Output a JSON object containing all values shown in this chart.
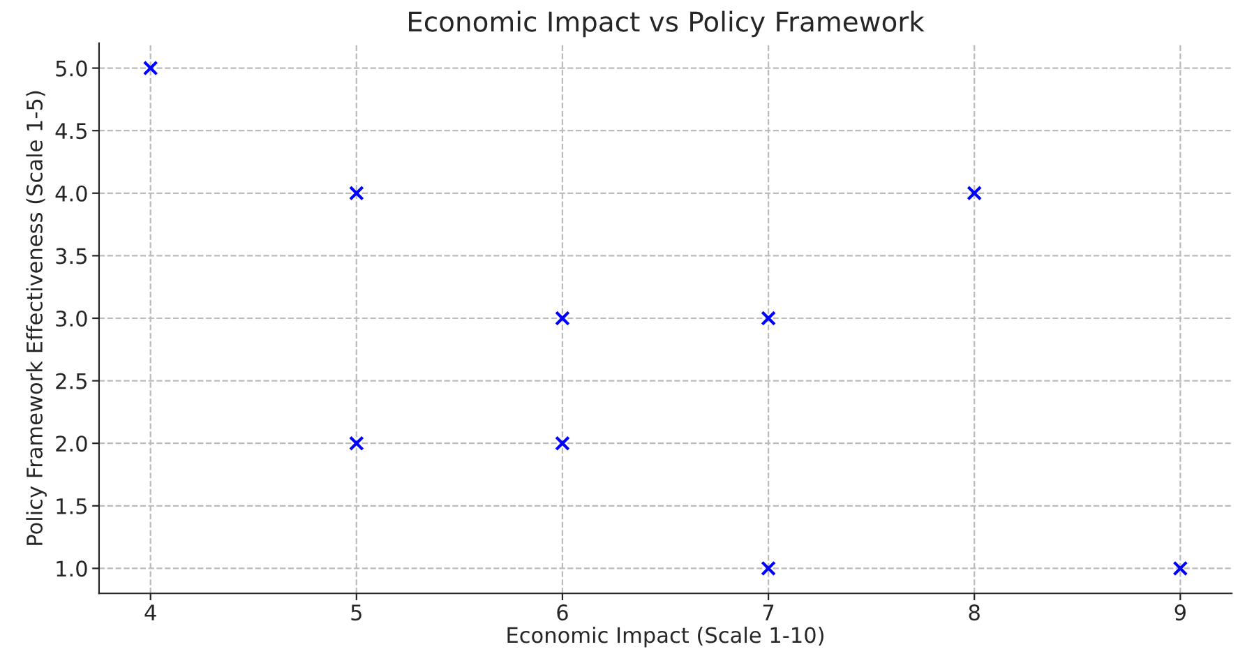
{
  "chart_data": {
    "type": "scatter",
    "title": "Economic Impact vs Policy Framework",
    "xlabel": "Economic Impact (Scale 1-10)",
    "ylabel": "Policy Framework Effectiveness (Scale 1-5)",
    "x": [
      4,
      5,
      5,
      6,
      6,
      7,
      7,
      8,
      9
    ],
    "series": [
      {
        "color": "#0000ff",
        "values": [
          5,
          4,
          2,
          3,
          2,
          3,
          1,
          4,
          1
        ]
      }
    ],
    "xlim": [
      3.75,
      9.25
    ],
    "ylim": [
      0.8,
      5.2
    ],
    "xticks": [
      4,
      5,
      6,
      7,
      8,
      9
    ],
    "yticks": [
      {
        "value": 1,
        "label": "1.0"
      },
      {
        "value": 1.5,
        "label": "1.5"
      },
      {
        "value": 2,
        "label": "2.0"
      },
      {
        "value": 2.5,
        "label": "2.5"
      },
      {
        "value": 3,
        "label": "3.0"
      },
      {
        "value": 3.5,
        "label": "3.5"
      },
      {
        "value": 4,
        "label": "4.0"
      },
      {
        "value": 4.5,
        "label": "4.5"
      },
      {
        "value": 5,
        "label": "5.0"
      }
    ],
    "grid": true,
    "marker": "cross"
  }
}
